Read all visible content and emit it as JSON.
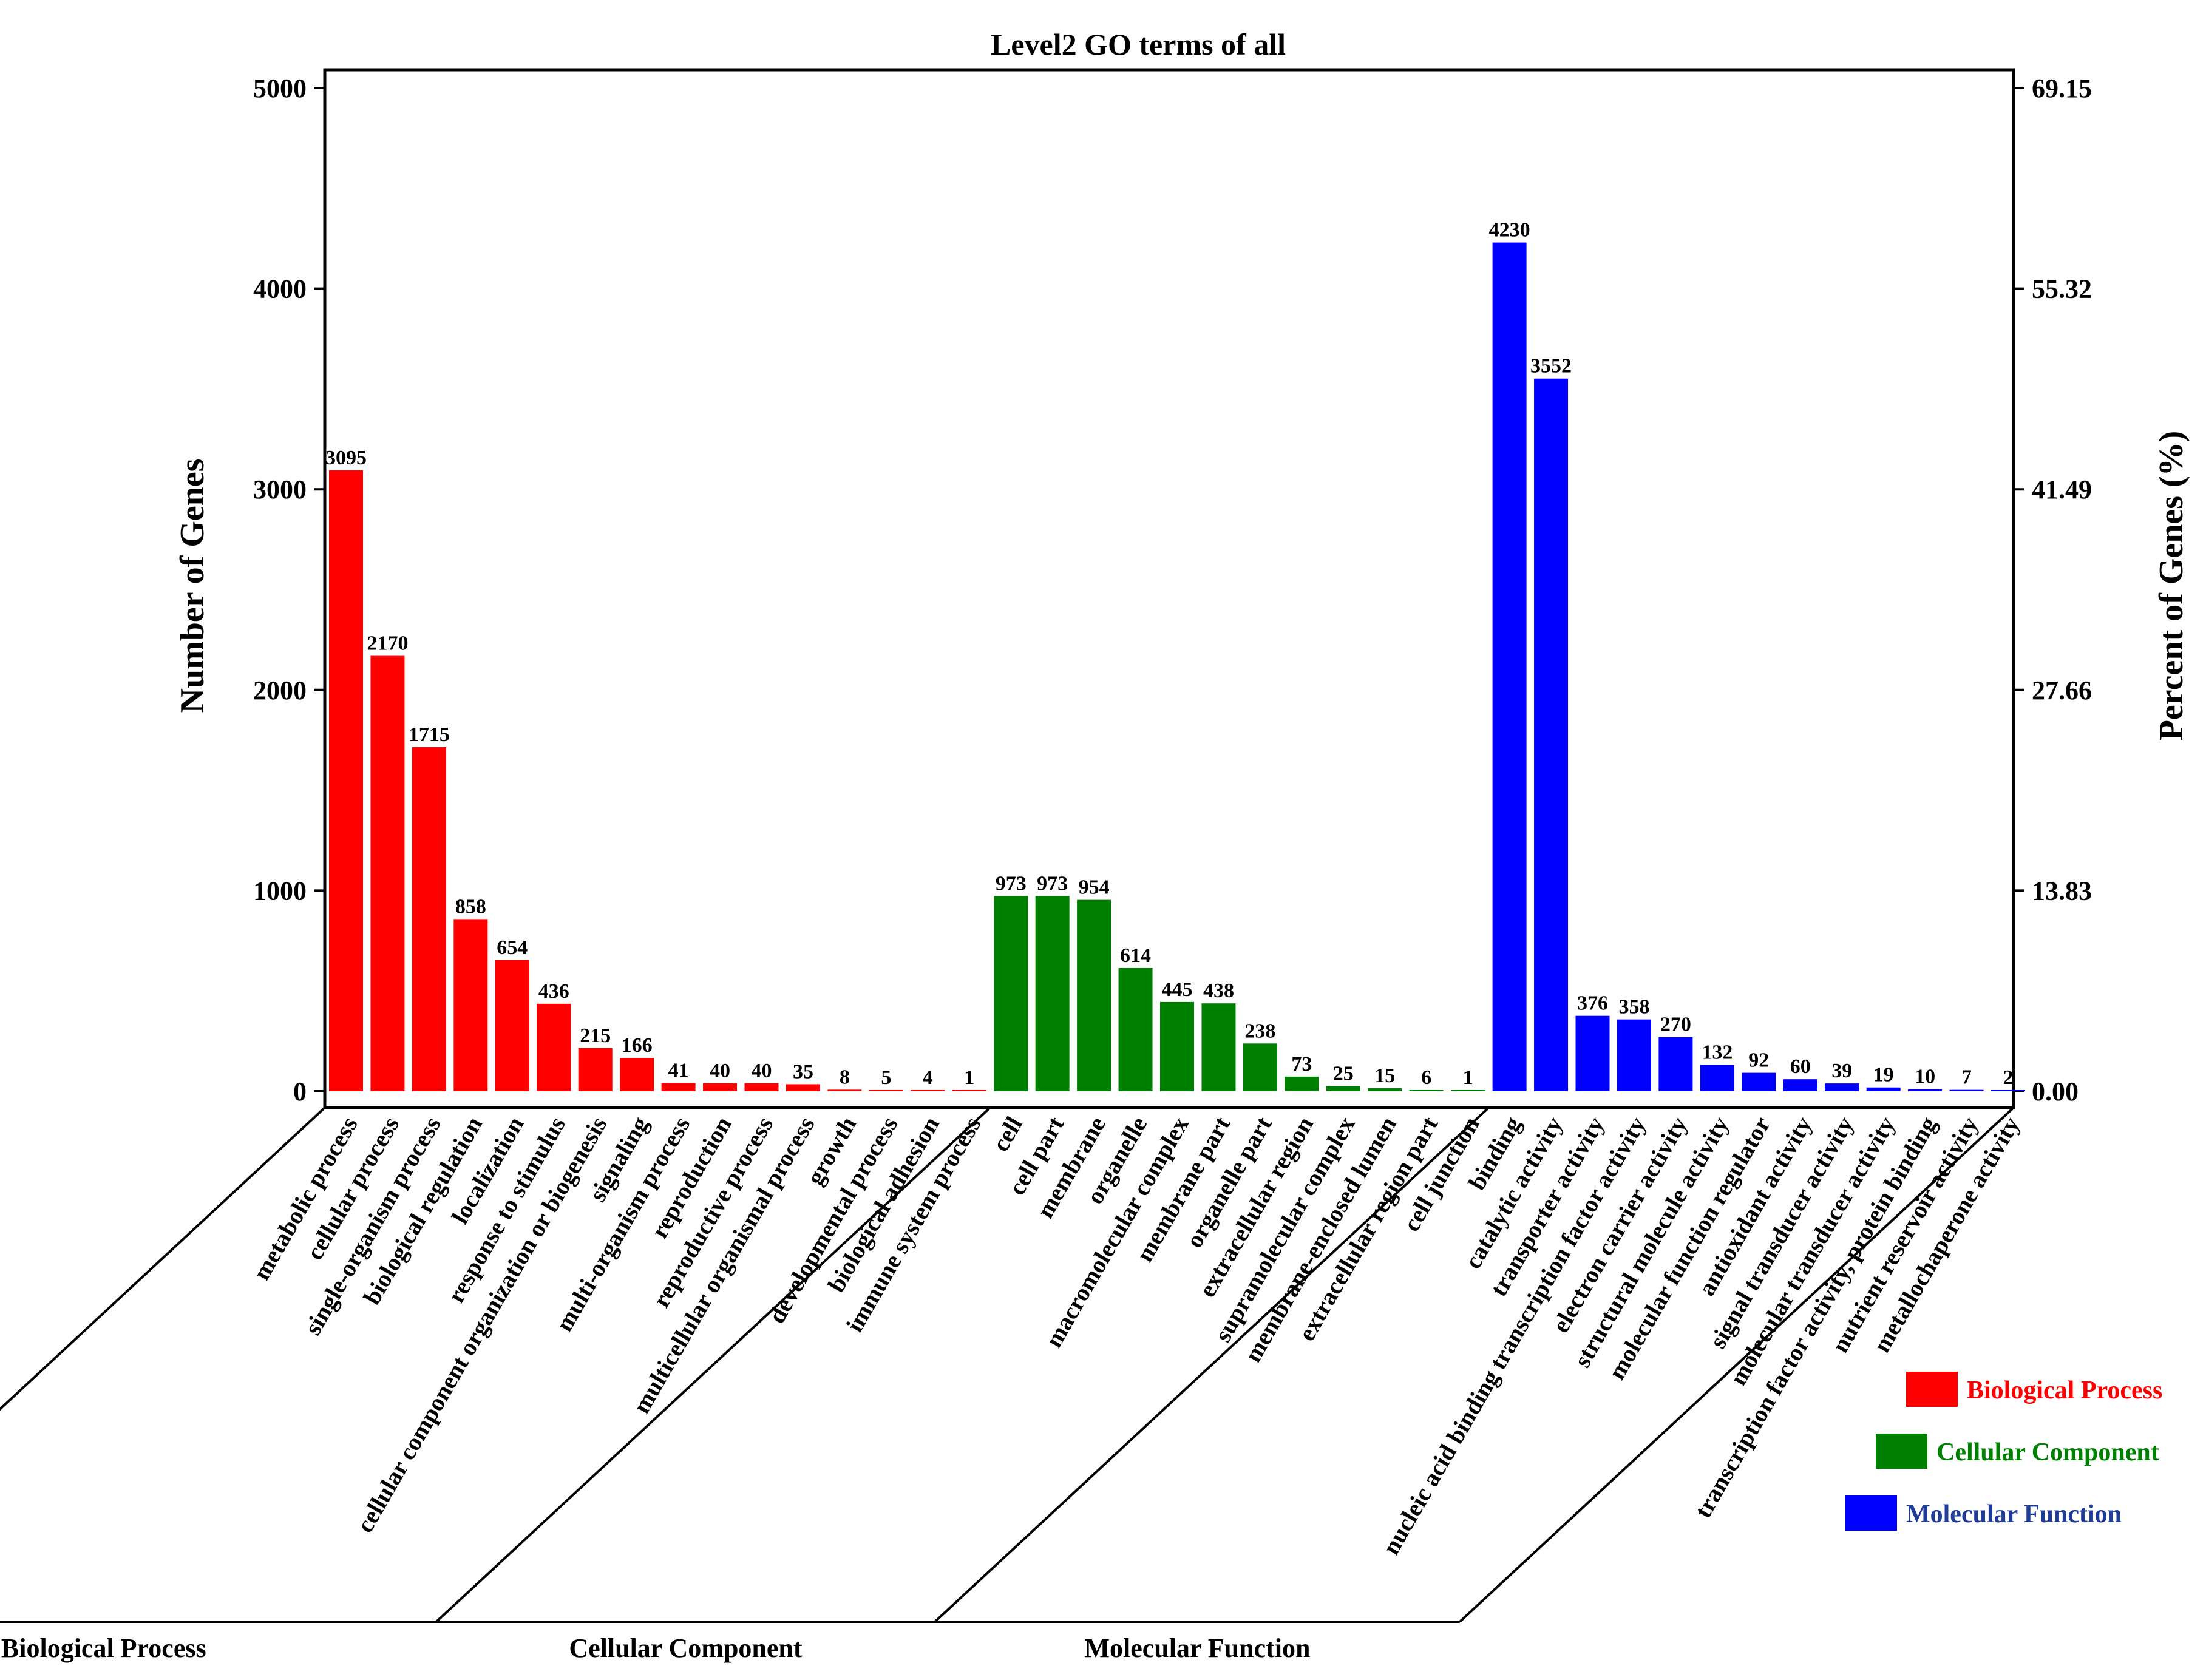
{
  "chart_data": {
    "type": "bar",
    "title": "Level2 GO terms of all",
    "ylabel": "Number of Genes",
    "y2label": "Percent of Genes (%)",
    "ylim": [
      0,
      5000
    ],
    "yticks": [
      0,
      1000,
      2000,
      3000,
      4000,
      5000
    ],
    "y2ticks": [
      "0.00",
      "13.83",
      "27.66",
      "41.49",
      "55.32",
      "69.15"
    ],
    "colors": {
      "Biological Process": "#ff0000",
      "Cellular Component": "#008000",
      "Molecular Function": "#0000ff"
    },
    "legend_position": "bottom-right",
    "series": [
      {
        "name": "Biological Process",
        "color": "#ff0000",
        "label_color": "#ff0000",
        "categories": [
          "metabolic process",
          "cellular process",
          "single-organism process",
          "biological regulation",
          "localization",
          "response to stimulus",
          "cellular component organization or biogenesis",
          "signaling",
          "multi-organism process",
          "reproduction",
          "reproductive process",
          "multicellular organismal process",
          "growth",
          "developmental process",
          "biological adhesion",
          "immune system process"
        ],
        "values": [
          3095,
          2170,
          1715,
          858,
          654,
          436,
          215,
          166,
          41,
          40,
          40,
          35,
          8,
          5,
          4,
          1
        ]
      },
      {
        "name": "Cellular Component",
        "color": "#008000",
        "label_color": "#008000",
        "categories": [
          "cell",
          "cell part",
          "membrane",
          "organelle",
          "macromolecular complex",
          "membrane part",
          "organelle part",
          "extracellular region",
          "supramolecular complex",
          "membrane-enclosed lumen",
          "extracellular region part",
          "cell junction"
        ],
        "values": [
          973,
          973,
          954,
          614,
          445,
          438,
          238,
          73,
          25,
          15,
          6,
          1
        ]
      },
      {
        "name": "Molecular Function",
        "color": "#0000ff",
        "label_color": "#1f3c99",
        "categories": [
          "binding",
          "catalytic activity",
          "transporter activity",
          "nucleic acid binding transcription factor activity",
          "electron carrier activity",
          "structural molecule activity",
          "molecular function regulator",
          "antioxidant activity",
          "signal transducer activity",
          "molecular transducer activity",
          "transcription factor activity, protein binding",
          "nutrient reservoir activity",
          "metallochaperone activity"
        ],
        "values": [
          4230,
          3552,
          376,
          358,
          270,
          132,
          92,
          60,
          39,
          19,
          10,
          7,
          2
        ]
      }
    ]
  }
}
